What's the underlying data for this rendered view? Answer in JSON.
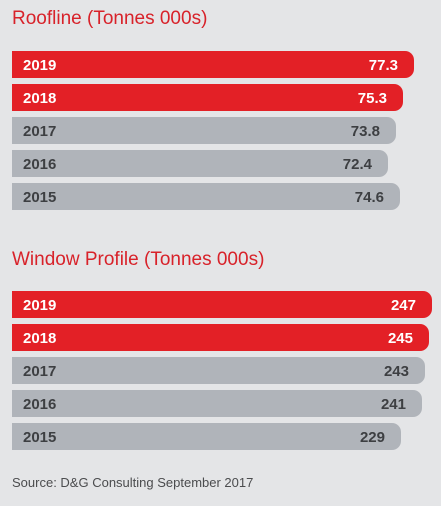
{
  "chart_data": [
    {
      "type": "bar",
      "orientation": "horizontal",
      "title": "Roofline (Tonnes 000s)",
      "categories": [
        "2019",
        "2018",
        "2017",
        "2016",
        "2015"
      ],
      "values": [
        77.3,
        75.3,
        73.8,
        72.4,
        74.6
      ],
      "value_labels": [
        "77.3",
        "75.3",
        "73.8",
        "72.4",
        "74.6"
      ],
      "highlight": [
        true,
        true,
        false,
        false,
        false
      ],
      "xlim": [
        0,
        80.8
      ]
    },
    {
      "type": "bar",
      "orientation": "horizontal",
      "title": "Window Profile (Tonnes 000s)",
      "categories": [
        "2019",
        "2018",
        "2017",
        "2016",
        "2015"
      ],
      "values": [
        247,
        245,
        243,
        241,
        229
      ],
      "value_labels": [
        "247",
        "245",
        "243",
        "241",
        "229"
      ],
      "highlight": [
        true,
        true,
        false,
        false,
        false
      ],
      "xlim": [
        0,
        247
      ]
    }
  ],
  "source": "Source: D&G Consulting September 2017",
  "colors": {
    "highlight": "#e32026",
    "normal": "#b0b4ba",
    "highlight_text": "#ffffff",
    "normal_text": "#3d3f42",
    "background": "#e4e5e7",
    "title": "#d8222a"
  }
}
